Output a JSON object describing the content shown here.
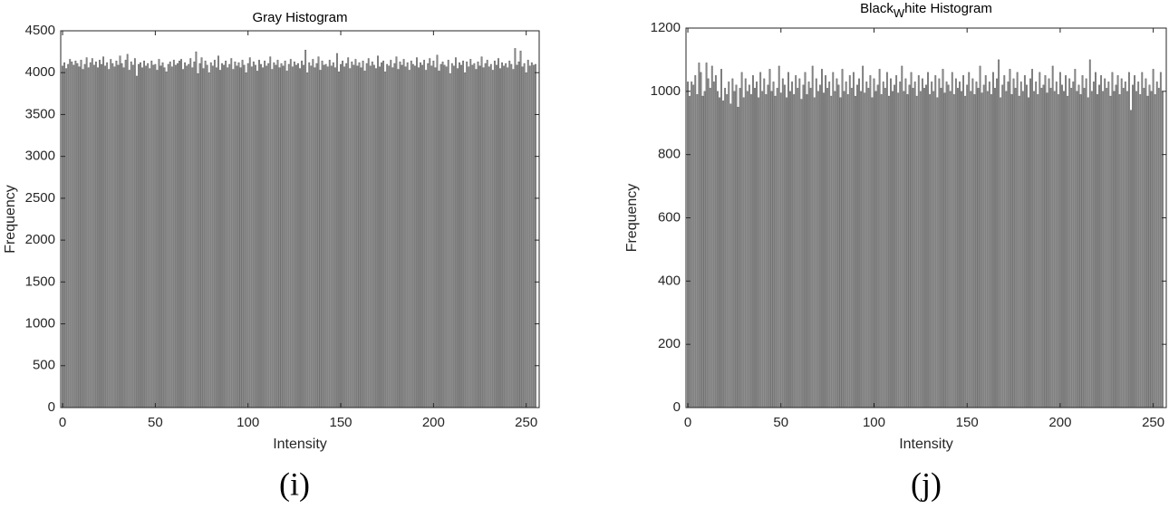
{
  "chart_data": [
    {
      "type": "histogram",
      "title": "Gray Histogram",
      "xlabel": "Intensity",
      "ylabel": "Frequency",
      "caption": "(i)",
      "color": "#8c8c8c",
      "xlim": [
        -1,
        257
      ],
      "xticks": [
        0,
        50,
        100,
        150,
        200,
        250
      ],
      "ylim": [
        0,
        4500
      ],
      "yticks": [
        0,
        500,
        1000,
        1500,
        2000,
        2500,
        3000,
        3500,
        4000,
        4500
      ],
      "x": [
        0,
        1,
        2,
        3,
        4,
        5,
        6,
        7,
        8,
        9,
        10,
        11,
        12,
        13,
        14,
        15,
        16,
        17,
        18,
        19,
        20,
        21,
        22,
        23,
        24,
        25,
        26,
        27,
        28,
        29,
        30,
        31,
        32,
        33,
        34,
        35,
        36,
        37,
        38,
        39,
        40,
        41,
        42,
        43,
        44,
        45,
        46,
        47,
        48,
        49,
        50,
        51,
        52,
        53,
        54,
        55,
        56,
        57,
        58,
        59,
        60,
        61,
        62,
        63,
        64,
        65,
        66,
        67,
        68,
        69,
        70,
        71,
        72,
        73,
        74,
        75,
        76,
        77,
        78,
        79,
        80,
        81,
        82,
        83,
        84,
        85,
        86,
        87,
        88,
        89,
        90,
        91,
        92,
        93,
        94,
        95,
        96,
        97,
        98,
        99,
        100,
        101,
        102,
        103,
        104,
        105,
        106,
        107,
        108,
        109,
        110,
        111,
        112,
        113,
        114,
        115,
        116,
        117,
        118,
        119,
        120,
        121,
        122,
        123,
        124,
        125,
        126,
        127,
        128,
        129,
        130,
        131,
        132,
        133,
        134,
        135,
        136,
        137,
        138,
        139,
        140,
        141,
        142,
        143,
        144,
        145,
        146,
        147,
        148,
        149,
        150,
        151,
        152,
        153,
        154,
        155,
        156,
        157,
        158,
        159,
        160,
        161,
        162,
        163,
        164,
        165,
        166,
        167,
        168,
        169,
        170,
        171,
        172,
        173,
        174,
        175,
        176,
        177,
        178,
        179,
        180,
        181,
        182,
        183,
        184,
        185,
        186,
        187,
        188,
        189,
        190,
        191,
        192,
        193,
        194,
        195,
        196,
        197,
        198,
        199,
        200,
        201,
        202,
        203,
        204,
        205,
        206,
        207,
        208,
        209,
        210,
        211,
        212,
        213,
        214,
        215,
        216,
        217,
        218,
        219,
        220,
        221,
        222,
        223,
        224,
        225,
        226,
        227,
        228,
        229,
        230,
        231,
        232,
        233,
        234,
        235,
        236,
        237,
        238,
        239,
        240,
        241,
        242,
        243,
        244,
        245,
        246,
        247,
        248,
        249,
        250,
        251,
        252,
        253,
        254,
        255
      ],
      "values": [
        4080,
        4120,
        4050,
        4100,
        4160,
        4130,
        4090,
        4140,
        4110,
        4070,
        4150,
        4040,
        4100,
        4180,
        4060,
        4120,
        4170,
        4090,
        4130,
        4060,
        4150,
        4100,
        4190,
        4080,
        4120,
        4040,
        4160,
        4110,
        4070,
        4140,
        4090,
        4200,
        4110,
        4060,
        4150,
        4220,
        4030,
        4130,
        4090,
        4170,
        3960,
        4100,
        4120,
        4060,
        4140,
        4080,
        4110,
        4050,
        4140,
        4090,
        4100,
        4030,
        4160,
        4080,
        4120,
        4060,
        4010,
        4100,
        4130,
        4070,
        4150,
        4090,
        4110,
        4140,
        4160,
        4040,
        4120,
        4080,
        4100,
        4170,
        4060,
        4130,
        4250,
        3990,
        4110,
        4180,
        4050,
        4140,
        4090,
        4000,
        4120,
        4080,
        4150,
        4060,
        4200,
        4030,
        4110,
        4090,
        4140,
        4060,
        4100,
        4170,
        4040,
        4130,
        4080,
        4120,
        4060,
        4150,
        4090,
        4000,
        4110,
        4180,
        4070,
        4130,
        4090,
        4020,
        4150,
        4100,
        4060,
        4140,
        4080,
        4110,
        4190,
        4040,
        4120,
        4090,
        4150,
        4060,
        4110,
        4080,
        4140,
        4020,
        4100,
        4160,
        4070,
        4130,
        4090,
        4110,
        4050,
        4140,
        4090,
        4270,
        4000,
        4120,
        4080,
        4160,
        4060,
        4110,
        4190,
        4030,
        4140,
        4090,
        4100,
        4070,
        4150,
        4080,
        4120,
        4060,
        4230,
        4010,
        4100,
        4140,
        4070,
        4110,
        4180,
        4050,
        4130,
        4090,
        4160,
        4080,
        4120,
        4060,
        4140,
        4020,
        4110,
        4170,
        4080,
        4130,
        4090,
        4050,
        4200,
        4070,
        4120,
        4140,
        4010,
        4100,
        4080,
        4150,
        4060,
        4110,
        4190,
        4040,
        4130,
        4090,
        4160,
        4070,
        4120,
        4030,
        4140,
        4100,
        4080,
        4180,
        4060,
        4120,
        4090,
        4150,
        4030,
        4110,
        4170,
        4080,
        4140,
        4060,
        4210,
        4020,
        4100,
        4130,
        4090,
        4070,
        4150,
        3990,
        4110,
        4080,
        4180,
        4050,
        4120,
        4090,
        4140,
        4000,
        4130,
        4070,
        4160,
        4090,
        4110,
        4040,
        4130,
        4080,
        4190,
        4060,
        4110,
        4150,
        4070,
        4100,
        4030,
        4140,
        4090,
        4170,
        4050,
        4120,
        4080,
        4110,
        4060,
        4140,
        4100,
        4040,
        4290,
        4090,
        4130,
        4260,
        4070,
        4110,
        4000,
        4150,
        4080,
        4120,
        4090,
        4100
      ]
    },
    {
      "type": "histogram",
      "title": [
        "Black",
        "W",
        "hite Histogram"
      ],
      "xlabel": "Intensity",
      "ylabel": "Frequency",
      "caption": "(j)",
      "color": "#8c8c8c",
      "xlim": [
        -1,
        257
      ],
      "xticks": [
        0,
        50,
        100,
        150,
        200,
        250
      ],
      "ylim": [
        0,
        1200
      ],
      "yticks": [
        0,
        200,
        400,
        600,
        800,
        1000,
        1200
      ],
      "x": [
        0,
        1,
        2,
        3,
        4,
        5,
        6,
        7,
        8,
        9,
        10,
        11,
        12,
        13,
        14,
        15,
        16,
        17,
        18,
        19,
        20,
        21,
        22,
        23,
        24,
        25,
        26,
        27,
        28,
        29,
        30,
        31,
        32,
        33,
        34,
        35,
        36,
        37,
        38,
        39,
        40,
        41,
        42,
        43,
        44,
        45,
        46,
        47,
        48,
        49,
        50,
        51,
        52,
        53,
        54,
        55,
        56,
        57,
        58,
        59,
        60,
        61,
        62,
        63,
        64,
        65,
        66,
        67,
        68,
        69,
        70,
        71,
        72,
        73,
        74,
        75,
        76,
        77,
        78,
        79,
        80,
        81,
        82,
        83,
        84,
        85,
        86,
        87,
        88,
        89,
        90,
        91,
        92,
        93,
        94,
        95,
        96,
        97,
        98,
        99,
        100,
        101,
        102,
        103,
        104,
        105,
        106,
        107,
        108,
        109,
        110,
        111,
        112,
        113,
        114,
        115,
        116,
        117,
        118,
        119,
        120,
        121,
        122,
        123,
        124,
        125,
        126,
        127,
        128,
        129,
        130,
        131,
        132,
        133,
        134,
        135,
        136,
        137,
        138,
        139,
        140,
        141,
        142,
        143,
        144,
        145,
        146,
        147,
        148,
        149,
        150,
        151,
        152,
        153,
        154,
        155,
        156,
        157,
        158,
        159,
        160,
        161,
        162,
        163,
        164,
        165,
        166,
        167,
        168,
        169,
        170,
        171,
        172,
        173,
        174,
        175,
        176,
        177,
        178,
        179,
        180,
        181,
        182,
        183,
        184,
        185,
        186,
        187,
        188,
        189,
        190,
        191,
        192,
        193,
        194,
        195,
        196,
        197,
        198,
        199,
        200,
        201,
        202,
        203,
        204,
        205,
        206,
        207,
        208,
        209,
        210,
        211,
        212,
        213,
        214,
        215,
        216,
        217,
        218,
        219,
        220,
        221,
        222,
        223,
        224,
        225,
        226,
        227,
        228,
        229,
        230,
        231,
        232,
        233,
        234,
        235,
        236,
        237,
        238,
        239,
        240,
        241,
        242,
        243,
        244,
        245,
        246,
        247,
        248,
        249,
        250,
        251,
        252,
        253,
        254,
        255
      ],
      "values": [
        1030,
        985,
        1030,
        1020,
        1050,
        990,
        1090,
        1060,
        985,
        1000,
        1090,
        1040,
        1010,
        1080,
        1030,
        1050,
        1000,
        980,
        1070,
        970,
        1010,
        990,
        1030,
        960,
        1040,
        1000,
        1020,
        950,
        1010,
        1060,
        980,
        1040,
        1000,
        1020,
        990,
        1050,
        1010,
        1030,
        980,
        1060,
        1000,
        1040,
        990,
        1020,
        1070,
        1000,
        1030,
        985,
        1010,
        1080,
        995,
        1040,
        1020,
        980,
        1060,
        1000,
        1030,
        990,
        1050,
        1010,
        1040,
        975,
        1020,
        1060,
        990,
        1030,
        1010,
        1080,
        980,
        1040,
        1000,
        1020,
        1070,
        995,
        1050,
        1010,
        1030,
        985,
        1060,
        1000,
        1040,
        1020,
        980,
        1070,
        1000,
        1030,
        990,
        1050,
        1010,
        1060,
        985,
        1020,
        1040,
        1000,
        1080,
        995,
        1030,
        1010,
        1050,
        980,
        1040,
        1000,
        1020,
        1070,
        990,
        1030,
        1010,
        1060,
        985,
        1040,
        1000,
        1020,
        1050,
        995,
        1030,
        1080,
        1000,
        1040,
        990,
        1020,
        1060,
        1010,
        1030,
        985,
        1050,
        1000,
        1040,
        1010,
        1020,
        1060,
        990,
        1030,
        1000,
        1050,
        980,
        1040,
        1010,
        1070,
        995,
        1030,
        1020,
        1000,
        1060,
        990,
        1040,
        1010,
        1030,
        1000,
        1050,
        985,
        1020,
        1060,
        1000,
        1040,
        990,
        1030,
        1010,
        1080,
        995,
        1020,
        1050,
        1000,
        1030,
        990,
        1060,
        1010,
        1040,
        1100,
        980,
        1020,
        1050,
        1000,
        1030,
        1070,
        990,
        1040,
        1010,
        1060,
        985,
        1030,
        1000,
        1050,
        1020,
        980,
        1040,
        1070,
        1000,
        1030,
        990,
        1060,
        1010,
        1020,
        1050,
        995,
        1040,
        1010,
        1080,
        1000,
        1030,
        990,
        1060,
        1020,
        1000,
        1050,
        985,
        1040,
        1010,
        1030,
        1070,
        1000,
        1020,
        990,
        1050,
        1010,
        1040,
        980,
        1100,
        1000,
        1030,
        1060,
        990,
        1020,
        1050,
        1000,
        1040,
        1010,
        1030,
        985,
        1060,
        1000,
        1020,
        1050,
        990,
        1040,
        1010,
        1030,
        1000,
        1060,
        940,
        1020,
        1050,
        1000,
        1030,
        990,
        1060,
        1010,
        1040,
        985,
        1020,
        1000,
        1070,
        990,
        1030,
        1010,
        1060,
        1000
      ]
    }
  ]
}
